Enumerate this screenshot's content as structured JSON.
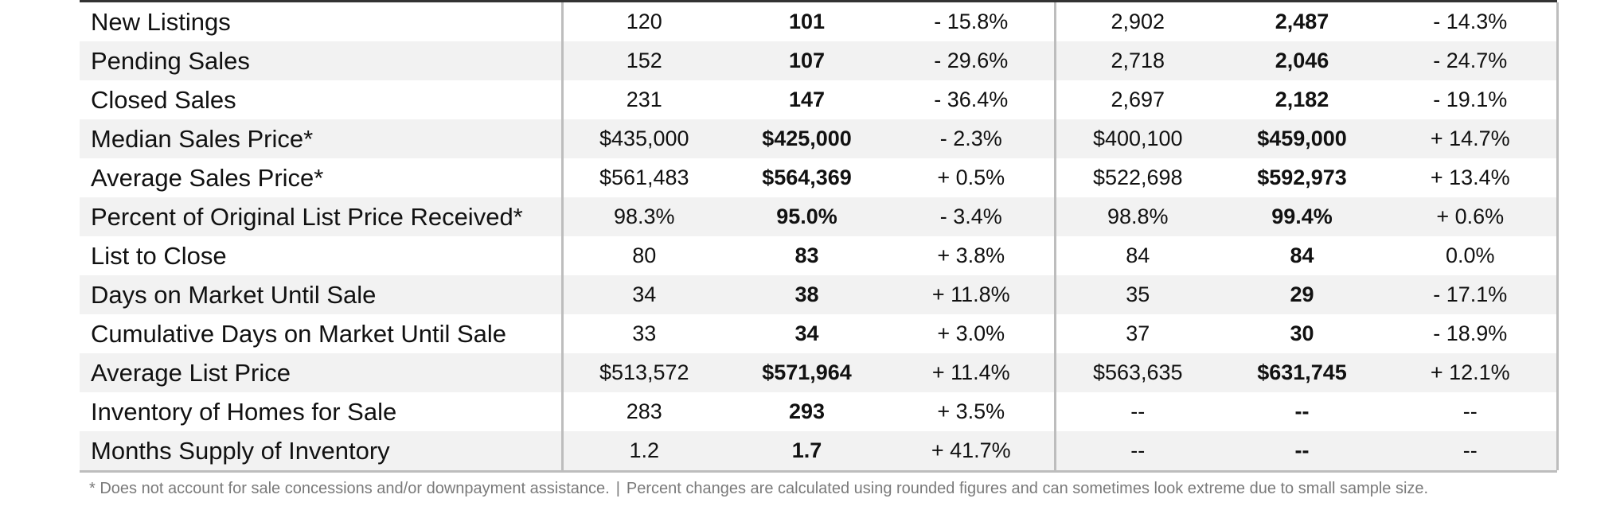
{
  "table": {
    "rows": [
      {
        "label": "New Listings",
        "v1": "120",
        "v2": "101",
        "chg1": "- 15.8%",
        "v3": "2,902",
        "v4": "2,487",
        "chg2": "- 14.3%"
      },
      {
        "label": "Pending Sales",
        "v1": "152",
        "v2": "107",
        "chg1": "- 29.6%",
        "v3": "2,718",
        "v4": "2,046",
        "chg2": "- 24.7%"
      },
      {
        "label": "Closed Sales",
        "v1": "231",
        "v2": "147",
        "chg1": "- 36.4%",
        "v3": "2,697",
        "v4": "2,182",
        "chg2": "- 19.1%"
      },
      {
        "label": "Median Sales Price*",
        "v1": "$435,000",
        "v2": "$425,000",
        "chg1": "- 2.3%",
        "v3": "$400,100",
        "v4": "$459,000",
        "chg2": "+ 14.7%"
      },
      {
        "label": "Average Sales Price*",
        "v1": "$561,483",
        "v2": "$564,369",
        "chg1": "+ 0.5%",
        "v3": "$522,698",
        "v4": "$592,973",
        "chg2": "+ 13.4%"
      },
      {
        "label": "Percent of Original List Price Received*",
        "v1": "98.3%",
        "v2": "95.0%",
        "chg1": "- 3.4%",
        "v3": "98.8%",
        "v4": "99.4%",
        "chg2": "+ 0.6%"
      },
      {
        "label": "List to Close",
        "v1": "80",
        "v2": "83",
        "chg1": "+ 3.8%",
        "v3": "84",
        "v4": "84",
        "chg2": "0.0%"
      },
      {
        "label": "Days on Market Until Sale",
        "v1": "34",
        "v2": "38",
        "chg1": "+ 11.8%",
        "v3": "35",
        "v4": "29",
        "chg2": "- 17.1%"
      },
      {
        "label": "Cumulative Days on Market Until Sale",
        "v1": "33",
        "v2": "34",
        "chg1": "+ 3.0%",
        "v3": "37",
        "v4": "30",
        "chg2": "- 18.9%"
      },
      {
        "label": "Average List Price",
        "v1": "$513,572",
        "v2": "$571,964",
        "chg1": "+ 11.4%",
        "v3": "$563,635",
        "v4": "$631,745",
        "chg2": "+ 12.1%"
      },
      {
        "label": "Inventory of Homes for Sale",
        "v1": "283",
        "v2": "293",
        "chg1": "+ 3.5%",
        "v3": "--",
        "v4": "--",
        "chg2": "--"
      },
      {
        "label": "Months Supply of Inventory",
        "v1": "1.2",
        "v2": "1.7",
        "chg1": "+ 41.7%",
        "v3": "--",
        "v4": "--",
        "chg2": "--"
      }
    ]
  },
  "footnote": {
    "left": "* Does not account for sale concessions and/or downpayment assistance.",
    "divider": "|",
    "right": "Percent changes are calculated using rounded figures and can sometimes look extreme due to small sample size."
  }
}
